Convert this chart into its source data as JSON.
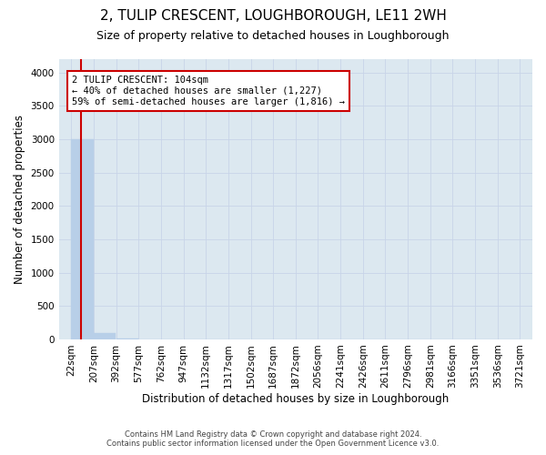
{
  "title": "2, TULIP CRESCENT, LOUGHBOROUGH, LE11 2WH",
  "subtitle": "Size of property relative to detached houses in Loughborough",
  "xlabel": "Distribution of detached houses by size in Loughborough",
  "ylabel": "Number of detached properties",
  "footer_line1": "Contains HM Land Registry data © Crown copyright and database right 2024.",
  "footer_line2": "Contains public sector information licensed under the Open Government Licence v3.0.",
  "bar_edges": [
    22,
    207,
    392,
    577,
    762,
    947,
    1132,
    1317,
    1502,
    1687,
    1872,
    2056,
    2241,
    2426,
    2611,
    2796,
    2981,
    3166,
    3351,
    3536,
    3721
  ],
  "bar_heights": [
    3000,
    100,
    5,
    2,
    1,
    1,
    0,
    0,
    0,
    0,
    0,
    0,
    0,
    0,
    0,
    0,
    0,
    0,
    0,
    0
  ],
  "bar_color": "#b8cfe8",
  "bar_edgecolor": "#b8cfe8",
  "property_size": 104,
  "marker_color": "#cc0000",
  "annotation_text": "2 TULIP CRESCENT: 104sqm\n← 40% of detached houses are smaller (1,227)\n59% of semi-detached houses are larger (1,816) →",
  "annotation_box_color": "#cc0000",
  "annotation_text_color": "#000000",
  "annotation_bg": "#ffffff",
  "ylim": [
    0,
    4200
  ],
  "yticks": [
    0,
    500,
    1000,
    1500,
    2000,
    2500,
    3000,
    3500,
    4000
  ],
  "grid_color": "#c8d4e8",
  "bg_color": "#dce8f0",
  "title_fontsize": 11,
  "subtitle_fontsize": 9,
  "xlabel_fontsize": 8.5,
  "ylabel_fontsize": 8.5,
  "tick_fontsize": 7.5,
  "annotation_fontsize": 7.5
}
